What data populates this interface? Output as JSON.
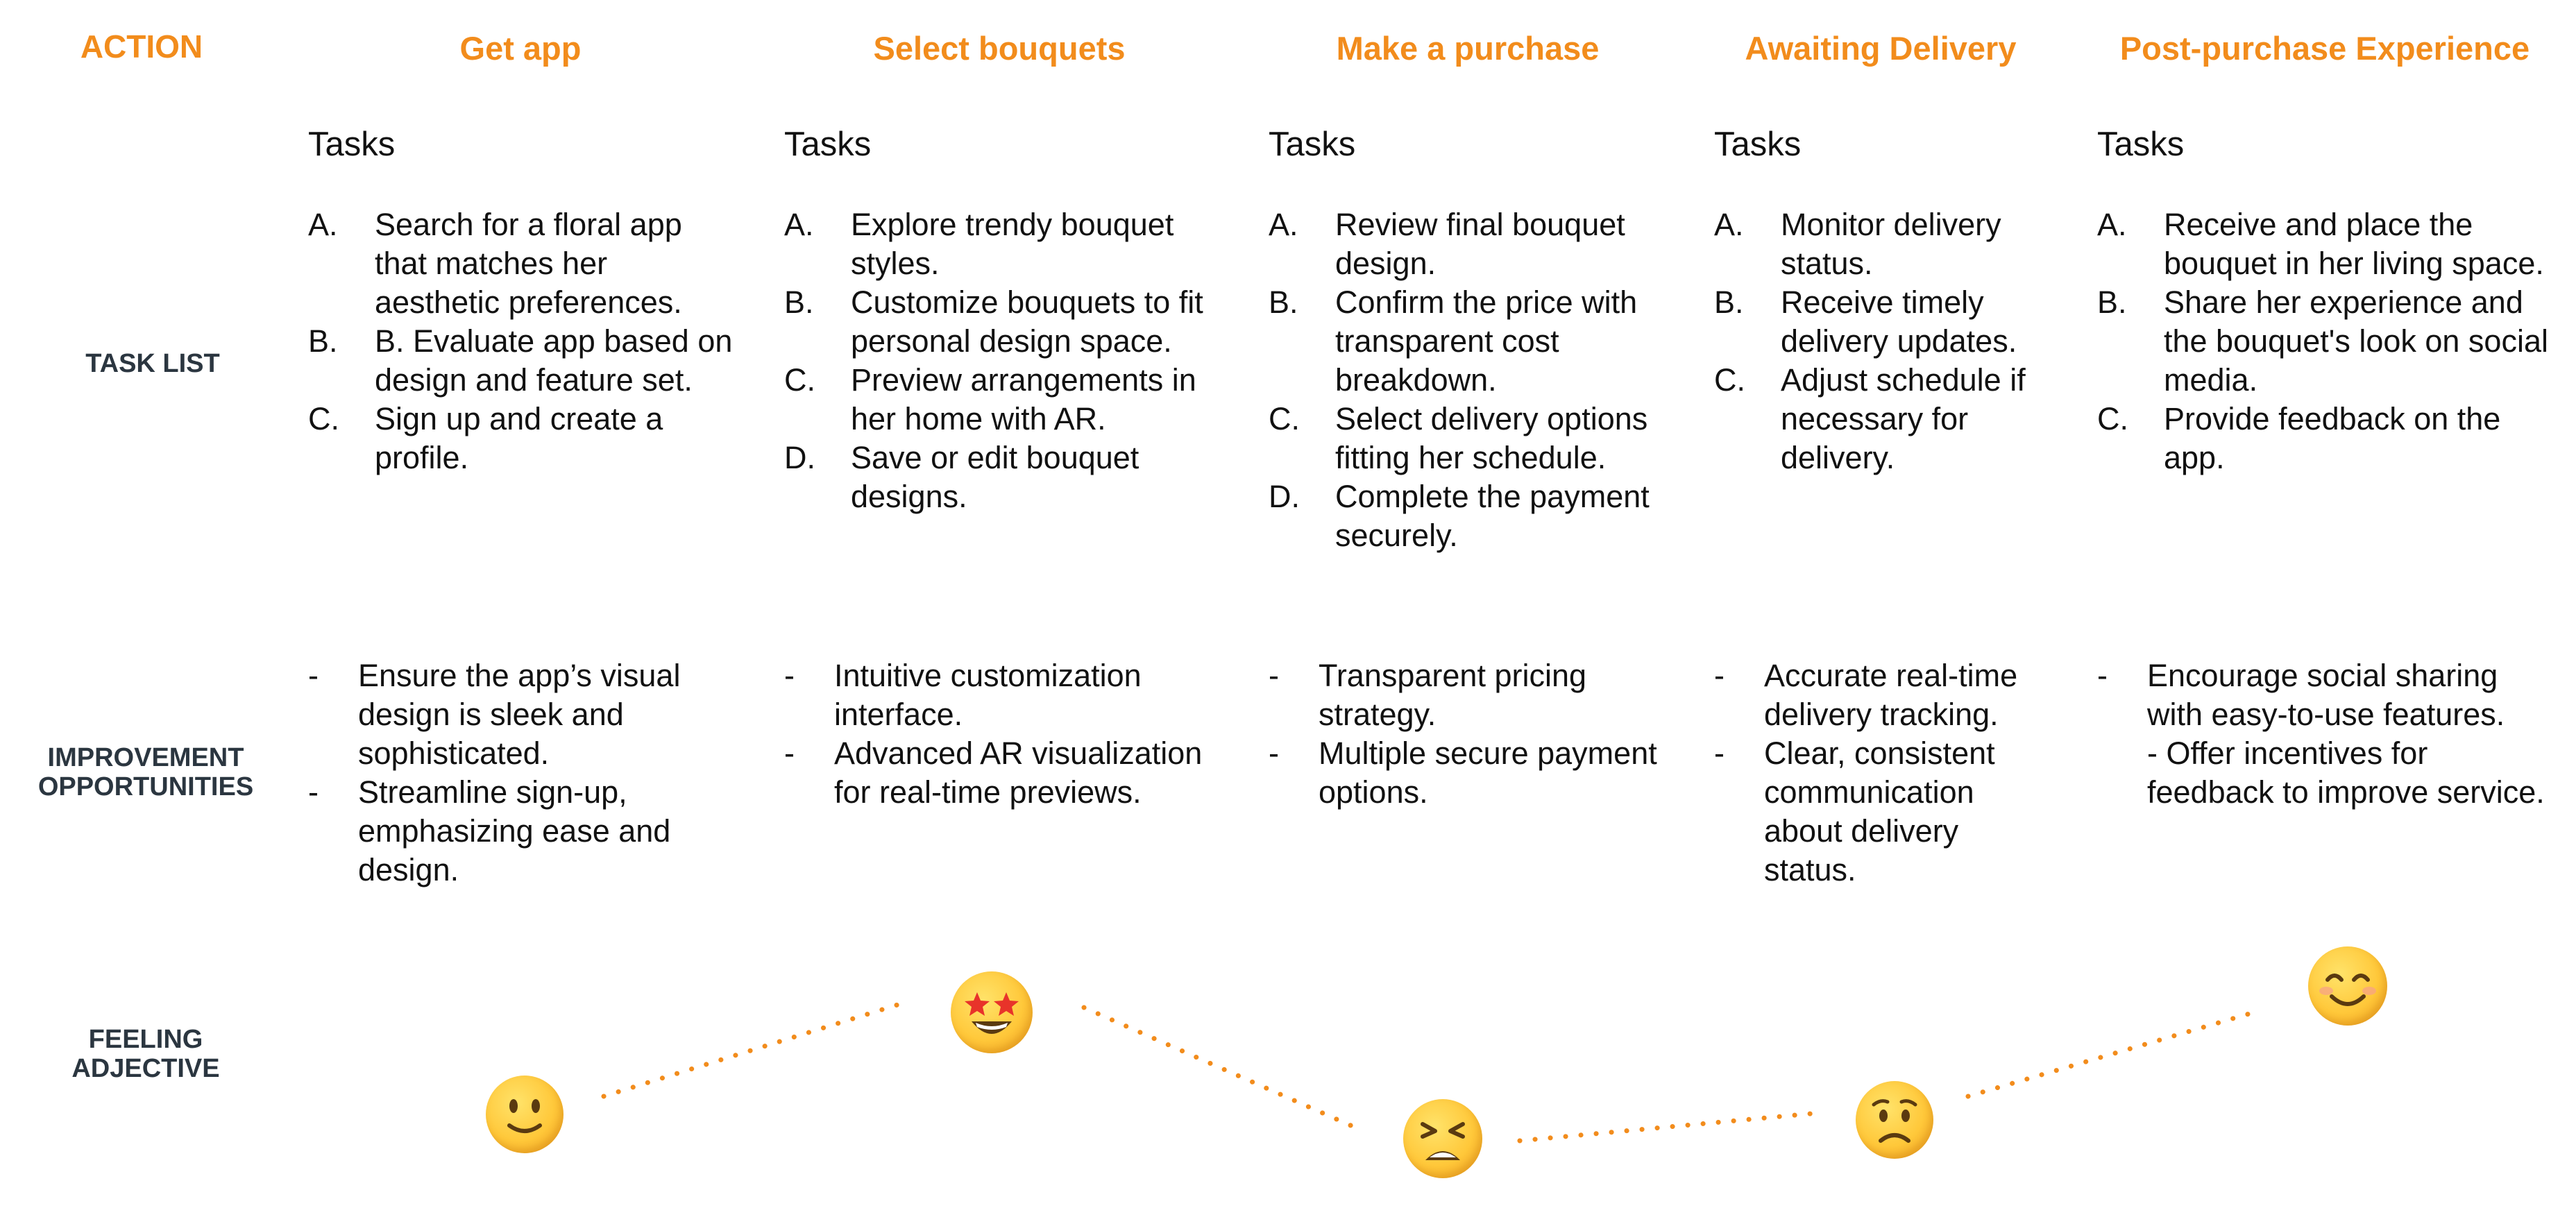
{
  "row_labels": {
    "action": "ACTION",
    "task_list": "TASK LIST",
    "improvement": "IMPROVEMENT\nOPPORTUNITIES",
    "feeling": "FEELING\nADJECTIVE"
  },
  "colors": {
    "accent": "#f28c1c",
    "row_label": "#2b3640",
    "text": "#111111"
  },
  "stages": [
    {
      "title": "Get app",
      "tasks_heading": "Tasks",
      "tasks": [
        {
          "marker": "A.",
          "text": "Search for a floral app that matches her aesthetic preferences."
        },
        {
          "marker": "B.",
          "text": "B. Evaluate app based on design and feature set."
        },
        {
          "marker": "C.",
          "text": "Sign up and create a profile."
        }
      ],
      "improvements": [
        {
          "marker": "-",
          "text": "Ensure the app’s visual design is sleek and sophisticated."
        },
        {
          "marker": "-",
          "text": "Streamline sign-up, emphasizing ease and design."
        }
      ],
      "feeling_icon": "slightly-smiling-face-icon"
    },
    {
      "title": "Select bouquets",
      "tasks_heading": "Tasks",
      "tasks": [
        {
          "marker": "A.",
          "text": "Explore trendy bouquet styles."
        },
        {
          "marker": "B.",
          "text": "Customize bouquets to fit personal design space."
        },
        {
          "marker": "C.",
          "text": "Preview arrangements in her home with AR."
        },
        {
          "marker": "D.",
          "text": "Save or edit bouquet designs."
        }
      ],
      "improvements": [
        {
          "marker": "-",
          "text": "Intuitive customization interface."
        },
        {
          "marker": "-",
          "text": "Advanced AR visualization for real-time previews."
        }
      ],
      "feeling_icon": "star-struck-face-icon"
    },
    {
      "title": "Make a purchase",
      "tasks_heading": "Tasks",
      "tasks": [
        {
          "marker": "A.",
          "text": "Review final bouquet design."
        },
        {
          "marker": "B.",
          "text": "Confirm the price with transparent cost breakdown."
        },
        {
          "marker": "C.",
          "text": "Select delivery options fitting her schedule."
        },
        {
          "marker": "D.",
          "text": "Complete the payment securely."
        }
      ],
      "improvements": [
        {
          "marker": "-",
          "text": "Transparent pricing strategy."
        },
        {
          "marker": "-",
          "text": "Multiple secure payment options."
        }
      ],
      "feeling_icon": "tired-face-icon"
    },
    {
      "title": "Awaiting Delivery",
      "tasks_heading": "Tasks",
      "tasks": [
        {
          "marker": "A.",
          "text": "Monitor delivery status."
        },
        {
          "marker": "B.",
          "text": "Receive timely delivery updates."
        },
        {
          "marker": "C.",
          "text": "Adjust schedule if necessary for delivery."
        }
      ],
      "improvements": [
        {
          "marker": "-",
          "text": "Accurate real-time delivery tracking."
        },
        {
          "marker": "-",
          "text": "Clear, consistent communication about delivery status."
        }
      ],
      "feeling_icon": "worried-face-icon"
    },
    {
      "title": "Post-purchase Experience",
      "tasks_heading": "Tasks",
      "tasks": [
        {
          "marker": "A.",
          "text": "Receive and place the bouquet in her living space."
        },
        {
          "marker": "B.",
          "text": "Share her experience and the bouquet's look on social media."
        },
        {
          "marker": "C.",
          "text": "Provide feedback on the app."
        }
      ],
      "improvements": [
        {
          "marker": "-",
          "text": "Encourage social sharing with easy-to-use features.\n- Offer incentives for feedback to improve service."
        }
      ],
      "feeling_icon": "smiling-face-icon"
    }
  ]
}
